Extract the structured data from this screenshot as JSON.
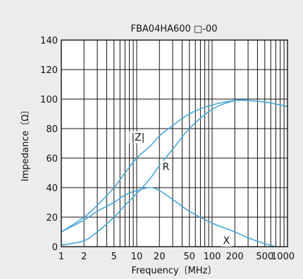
{
  "chart_data": {
    "type": "line",
    "title": "FBA04HA600 □-00",
    "xlabel": "Frequency〔MHz〕",
    "ylabel": "Impedance〔Ω〕",
    "xscale": "log",
    "xlim": [
      1,
      1000
    ],
    "ylim": [
      0,
      140
    ],
    "grid": true,
    "x_ticks": [
      1,
      2,
      5,
      10,
      20,
      50,
      100,
      200,
      500,
      1000
    ],
    "x_tick_labels": [
      "1",
      "2",
      "5",
      "10",
      "20",
      "50",
      "100",
      "200",
      "500",
      "1000"
    ],
    "y_ticks": [
      0,
      20,
      40,
      60,
      80,
      100,
      120,
      140
    ],
    "y_tick_labels": [
      "0",
      "20",
      "40",
      "60",
      "80",
      "100",
      "120",
      "140"
    ],
    "series": [
      {
        "name": "|Z|",
        "label_at": [
          8.5,
          72
        ],
        "points": [
          [
            1,
            10
          ],
          [
            2,
            20
          ],
          [
            3,
            28
          ],
          [
            5,
            40
          ],
          [
            7,
            50
          ],
          [
            10,
            60
          ],
          [
            15,
            68
          ],
          [
            20,
            75
          ],
          [
            30,
            82
          ],
          [
            50,
            90
          ],
          [
            100,
            96
          ],
          [
            200,
            99
          ],
          [
            300,
            99
          ],
          [
            500,
            98
          ],
          [
            1000,
            95
          ]
        ]
      },
      {
        "name": "R",
        "label_at": [
          22,
          52
        ],
        "points": [
          [
            1,
            1
          ],
          [
            2,
            4
          ],
          [
            3,
            10
          ],
          [
            5,
            20
          ],
          [
            7,
            28
          ],
          [
            10,
            36
          ],
          [
            15,
            46
          ],
          [
            20,
            55
          ],
          [
            30,
            66
          ],
          [
            50,
            80
          ],
          [
            100,
            93
          ],
          [
            200,
            99
          ],
          [
            300,
            99
          ],
          [
            500,
            98
          ],
          [
            1000,
            95
          ]
        ]
      },
      {
        "name": "X",
        "label_at": [
          140,
          2
        ],
        "points": [
          [
            1,
            10
          ],
          [
            2,
            18
          ],
          [
            3,
            24
          ],
          [
            5,
            30
          ],
          [
            7,
            35
          ],
          [
            10,
            38
          ],
          [
            15,
            40
          ],
          [
            20,
            38
          ],
          [
            30,
            32
          ],
          [
            50,
            24
          ],
          [
            100,
            16
          ],
          [
            200,
            10
          ],
          [
            300,
            6
          ],
          [
            500,
            2
          ],
          [
            700,
            0
          ]
        ]
      }
    ],
    "colors": {
      "curve": "#4aa8d6",
      "grid": "#111111",
      "plot_bg": "#ffffff",
      "panel_bg": "#ececec"
    }
  }
}
